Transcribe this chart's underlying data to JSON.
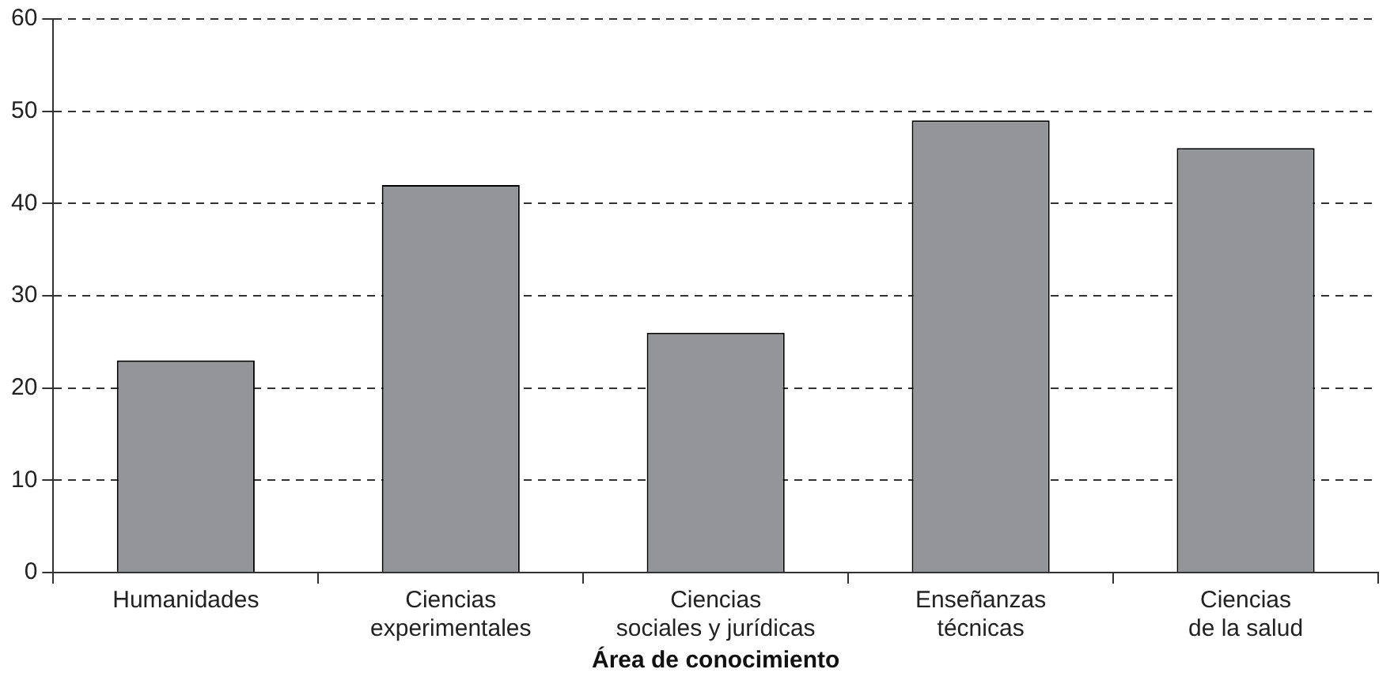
{
  "chart_data": {
    "type": "bar",
    "xlabel": "Área de conocimiento",
    "categories": [
      "Humanidades",
      "Ciencias\nexperimentales",
      "Ciencias\nsociales y jurídicas",
      "Enseñanzas\ntécnicas",
      "Ciencias\nde la salud"
    ],
    "values": [
      23,
      42,
      26,
      49,
      46
    ],
    "color": "#939598",
    "ylim": [
      0,
      60
    ],
    "yticks": [
      0,
      10,
      20,
      30,
      40,
      50,
      60
    ],
    "grid": "y",
    "line_style": "dashed",
    "legend": false
  }
}
